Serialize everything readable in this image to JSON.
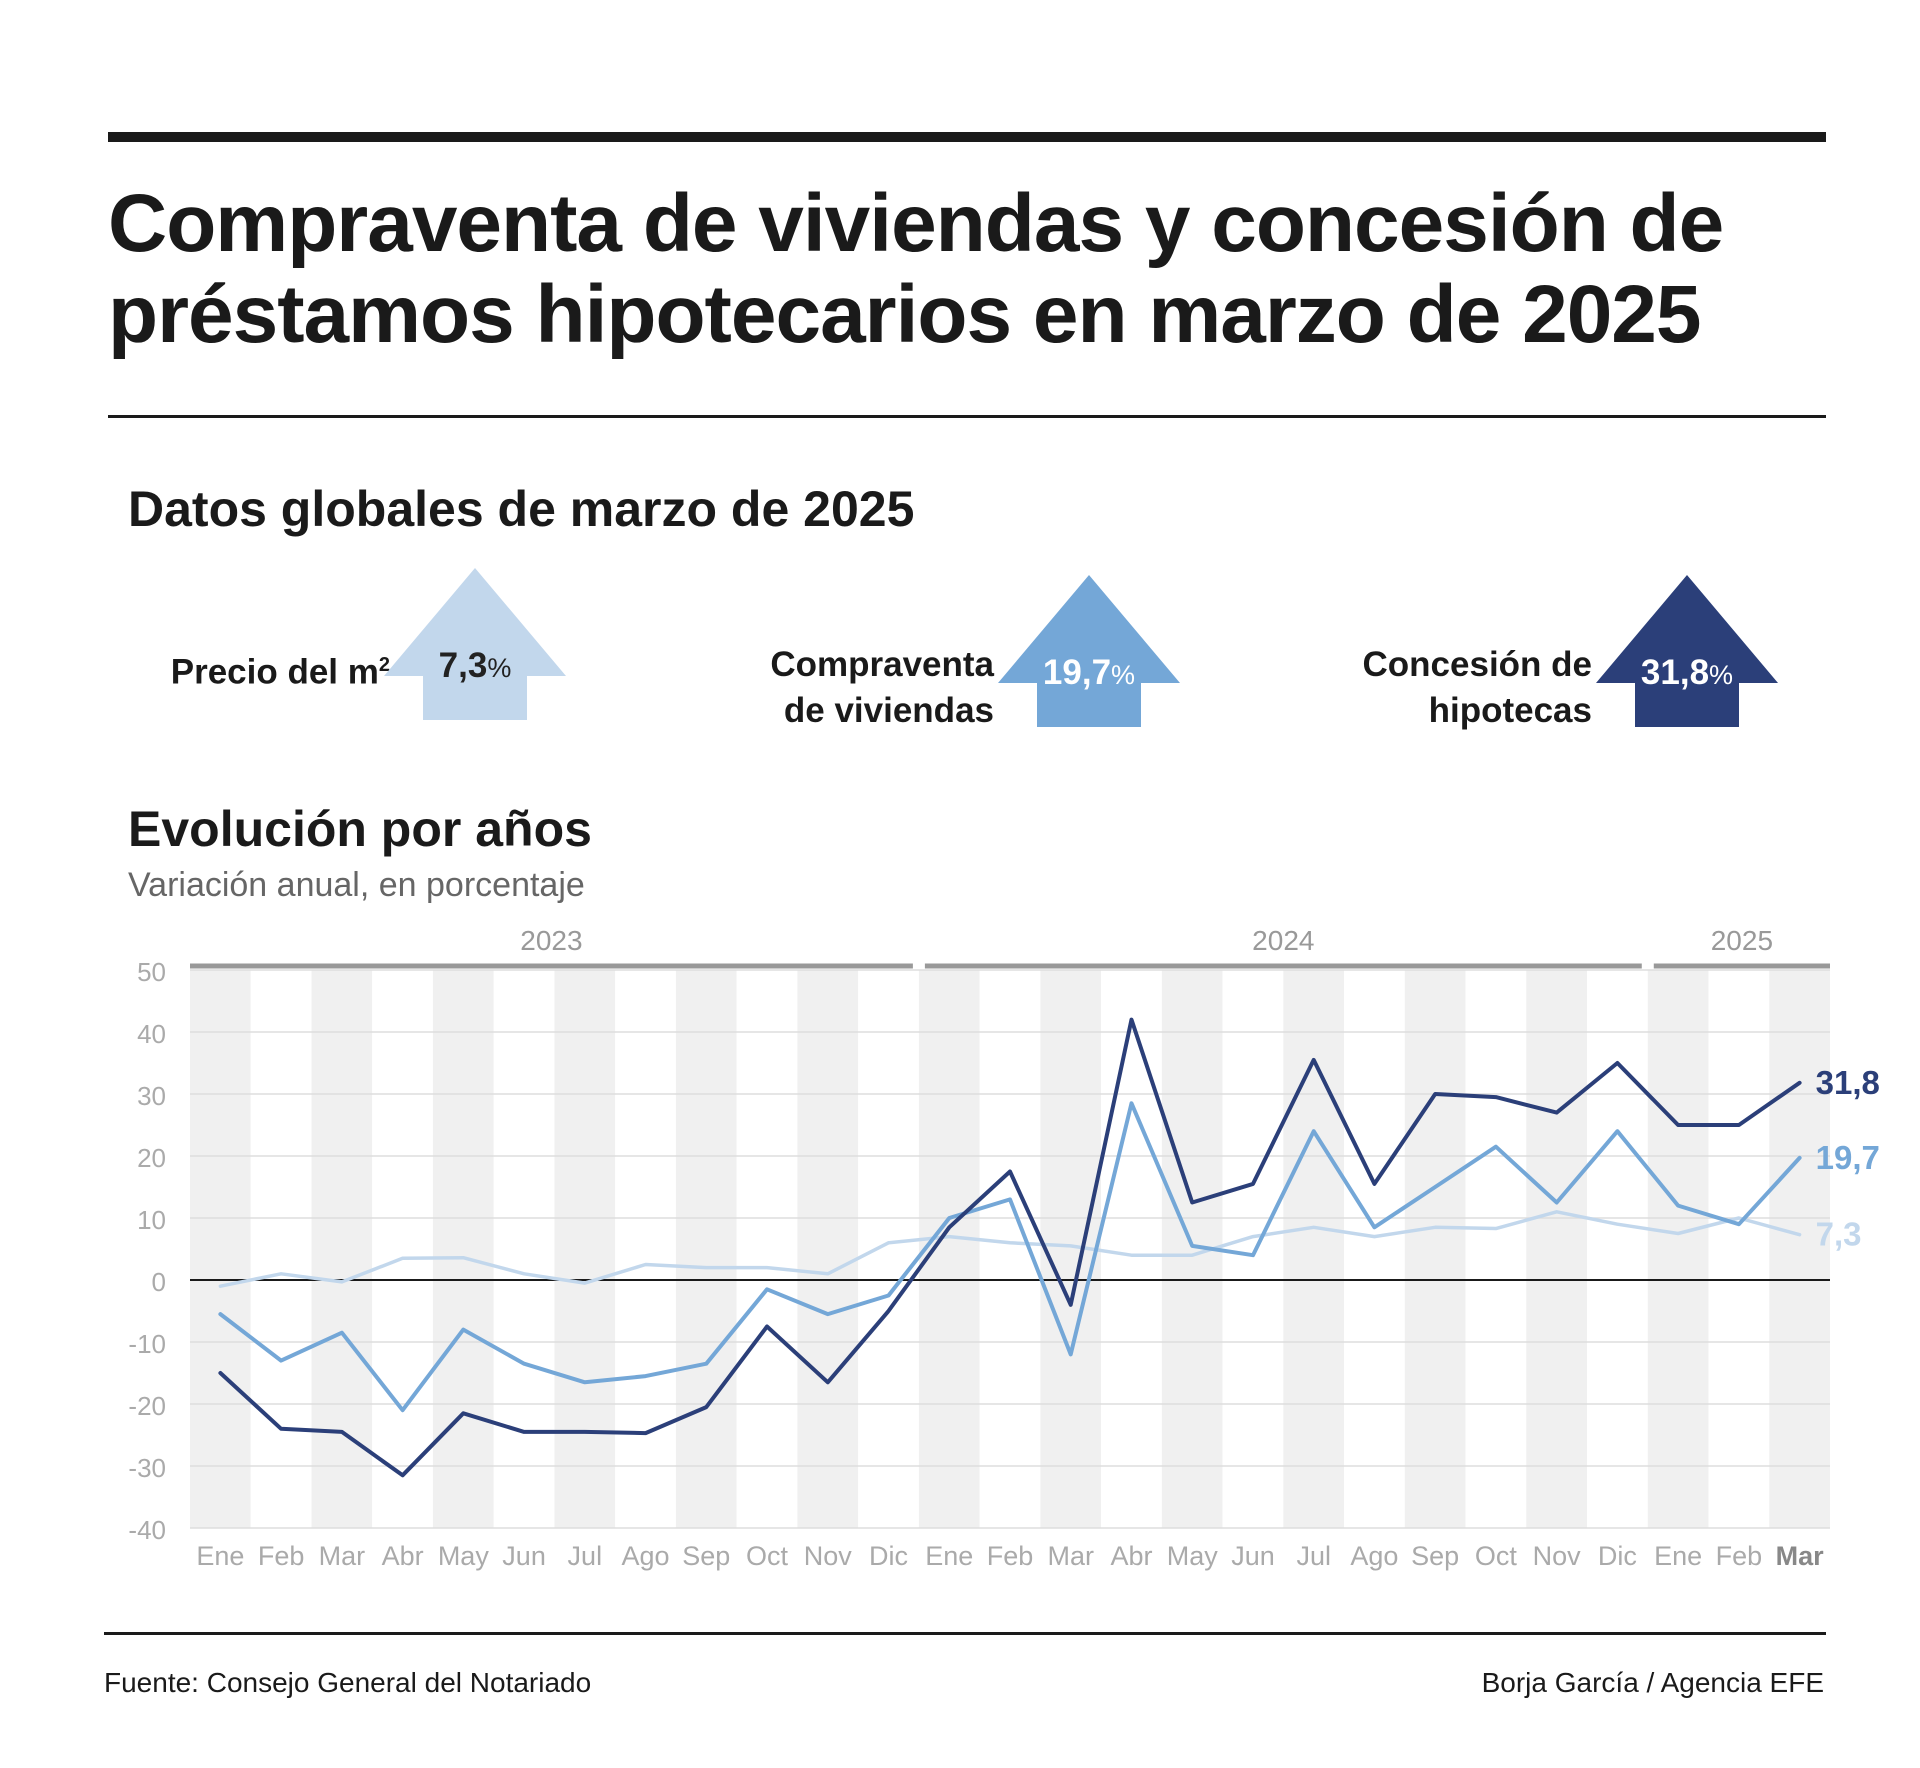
{
  "header": {
    "title": "Compraventa de viviendas y concesión de préstamos hipotecarios en marzo de 2025"
  },
  "kpis": {
    "heading": "Datos globales de marzo de 2025",
    "items": [
      {
        "label": "Precio del m",
        "label_sup": "2",
        "value": "7,3",
        "unit": "%",
        "color": "#c2d7ec"
      },
      {
        "label": "Compraventa de viviendas",
        "value": "19,7",
        "unit": "%",
        "color": "#74a7d7"
      },
      {
        "label": "Concesión de hipotecas",
        "value": "31,8",
        "unit": "%",
        "color": "#2b3f79"
      }
    ]
  },
  "evolution": {
    "heading": "Evolución por años",
    "subtitle": "Variación anual, en porcentaje"
  },
  "chart_data": {
    "type": "line",
    "categories": [
      "Ene",
      "Feb",
      "Mar",
      "Abr",
      "May",
      "Jun",
      "Jul",
      "Ago",
      "Sep",
      "Oct",
      "Nov",
      "Dic",
      "Ene",
      "Feb",
      "Mar",
      "Abr",
      "May",
      "Jun",
      "Jul",
      "Ago",
      "Sep",
      "Oct",
      "Nov",
      "Dic",
      "Ene",
      "Feb",
      "Mar"
    ],
    "highlight_category_index": 26,
    "year_groups": [
      {
        "label": "2023",
        "start": 0,
        "end": 11
      },
      {
        "label": "2024",
        "start": 12,
        "end": 23
      },
      {
        "label": "2025",
        "start": 24,
        "end": 26
      }
    ],
    "ylim": [
      -40,
      50
    ],
    "yticks": [
      50,
      40,
      30,
      20,
      10,
      0,
      -10,
      -20,
      -30,
      -40
    ],
    "grid": true,
    "series": [
      {
        "values": [
          -1,
          1,
          -0.3,
          3.5,
          3.6,
          1,
          -0.5,
          2.5,
          2,
          2,
          1,
          6,
          7,
          6,
          5.5,
          4,
          4,
          7,
          8.5,
          7,
          8.5,
          8.3,
          11,
          9,
          7.5,
          10,
          7.3
        ],
        "end_label": "7,3",
        "color": "#c2d7ec",
        "width": 3.5
      },
      {
        "values": [
          -5.5,
          -13,
          -8.5,
          -21,
          -8,
          -13.5,
          -16.5,
          -15.5,
          -13.5,
          -1.5,
          -5.5,
          -2.5,
          10,
          13,
          -12,
          28.5,
          5.5,
          4,
          24,
          8.5,
          15,
          21.5,
          12.5,
          24,
          12,
          9,
          19.7
        ],
        "end_label": "19,7",
        "color": "#74a7d7",
        "width": 4
      },
      {
        "values": [
          -15,
          -24,
          -24.5,
          -31.5,
          -21.5,
          -24.5,
          -24.5,
          -24.7,
          -20.5,
          -7.5,
          -16.5,
          -5,
          8.5,
          17.5,
          -4,
          42,
          12.5,
          15.5,
          35.5,
          15.5,
          30,
          29.5,
          27,
          35,
          25,
          25,
          31.8
        ],
        "end_label": "31,8",
        "color": "#2b3f79",
        "width": 4
      }
    ]
  },
  "footer": {
    "source": "Fuente: Consejo General del Notariado",
    "credit": "Borja García / Agencia EFE"
  }
}
